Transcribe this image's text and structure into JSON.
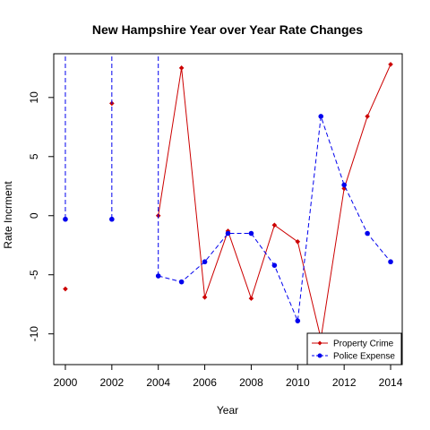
{
  "chart_data": {
    "type": "line",
    "title": "New Hampshire Year over Year Rate Changes",
    "xlabel": "Year",
    "ylabel": "Rate Incrment",
    "xlim": [
      1999.5,
      2014.5
    ],
    "ylim": [
      -12.6,
      13.7
    ],
    "x_ticks": [
      2000,
      2002,
      2004,
      2006,
      2008,
      2010,
      2012,
      2014
    ],
    "y_ticks": [
      -10,
      -5,
      0,
      5,
      10
    ],
    "y_tick_labels": [
      "-10",
      "-5",
      "0",
      "5",
      "10"
    ],
    "grid": false,
    "legend_position": "bottom-right",
    "series": [
      {
        "name": "Property Crime",
        "color": "#cc0000",
        "line_style": "solid",
        "marker": "diamond",
        "points": [
          [
            2000,
            -6.2
          ],
          [
            2002,
            9.5
          ],
          [
            2004,
            0.0
          ],
          [
            2005,
            12.5
          ],
          [
            2006,
            -6.9
          ],
          [
            2007,
            -1.3
          ],
          [
            2008,
            -7.0
          ],
          [
            2009,
            -0.8
          ],
          [
            2010,
            -2.2
          ],
          [
            2011,
            -10.4
          ],
          [
            2012,
            2.3
          ],
          [
            2013,
            8.4
          ],
          [
            2014,
            12.8
          ]
        ],
        "segments": [
          [
            2004,
            2005,
            2006,
            2007,
            2008,
            2009,
            2010,
            2011,
            2012,
            2013,
            2014
          ]
        ]
      },
      {
        "name": "Police Expense",
        "color": "#0000ee",
        "line_style": "dashed",
        "marker": "circle",
        "points": [
          [
            2000,
            -0.3
          ],
          [
            2002,
            -0.3
          ],
          [
            2004,
            -5.1
          ],
          [
            2005,
            -5.6
          ],
          [
            2006,
            -3.9
          ],
          [
            2007,
            -1.5
          ],
          [
            2008,
            -1.5
          ],
          [
            2009,
            -4.2
          ],
          [
            2010,
            -8.9
          ],
          [
            2011,
            8.4
          ],
          [
            2012,
            2.6
          ],
          [
            2013,
            -1.5
          ],
          [
            2014,
            -3.9
          ]
        ],
        "off_scale_up": [
          2000,
          2002,
          2004
        ],
        "segments": [
          [
            2004,
            2005,
            2006,
            2007,
            2008,
            2009,
            2010,
            2011,
            2012,
            2013,
            2014
          ]
        ]
      }
    ]
  }
}
